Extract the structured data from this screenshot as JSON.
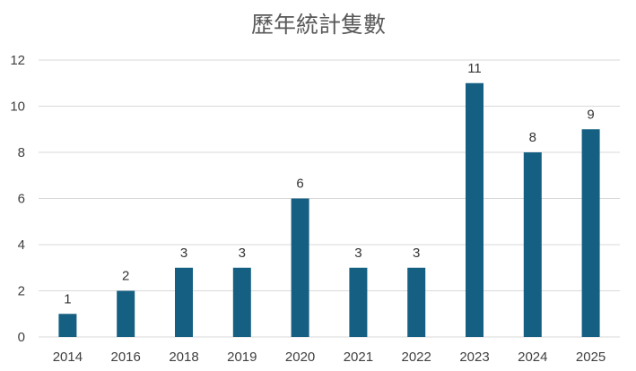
{
  "chart_data": {
    "type": "bar",
    "title": "歷年統計隻數",
    "xlabel": "",
    "ylabel": "",
    "categories": [
      "2014",
      "2016",
      "2018",
      "2019",
      "2020",
      "2021",
      "2022",
      "2023",
      "2024",
      "2025"
    ],
    "values": [
      1,
      2,
      3,
      3,
      6,
      3,
      3,
      11,
      8,
      9
    ],
    "ylim": [
      0,
      12
    ],
    "yticks": [
      0,
      2,
      4,
      6,
      8,
      10,
      12
    ],
    "grid": true,
    "legend": "none",
    "data_labels": true,
    "bar_color": "#156082"
  }
}
